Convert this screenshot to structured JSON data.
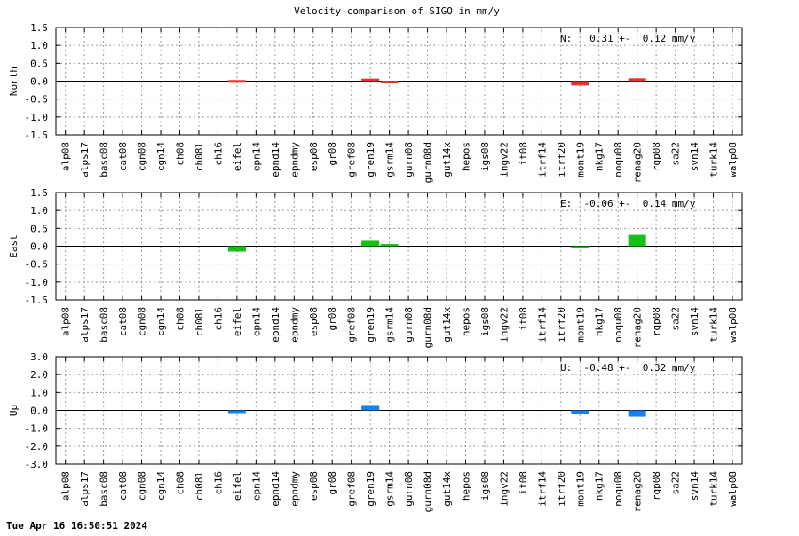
{
  "title": "Velocity comparison of SIGO in mm/y",
  "footer": {
    "timestamp": "Tue Apr 16 16:50:51 2024"
  },
  "chart_data": [
    {
      "type": "bar",
      "ylabel": "North",
      "annotation": "N:   0.31 +-  0.12 mm/y",
      "ylim": [
        -1.5,
        1.5
      ],
      "yticks": [
        "1.5",
        "1.0",
        "0.5",
        "0.0",
        "-0.5",
        "-1.0",
        "-1.5"
      ],
      "categories": [
        "alp08",
        "alps17",
        "basc08",
        "cat08",
        "cgn08",
        "cgn14",
        "ch08",
        "ch08l",
        "ch16",
        "eifel",
        "epn14",
        "epnd14",
        "epndmy",
        "esp08",
        "gr08",
        "gref08",
        "gren19",
        "gsrm14",
        "gurn08",
        "gurn08d",
        "gut14x",
        "hepos",
        "igs08",
        "ingv22",
        "it08",
        "itrf14",
        "itrf20",
        "mont19",
        "nkg17",
        "noqu08",
        "renag20",
        "rgp08",
        "sa22",
        "svn14",
        "turk14",
        "walp08"
      ],
      "values": [
        null,
        null,
        null,
        null,
        null,
        null,
        null,
        null,
        null,
        0.03,
        null,
        null,
        null,
        null,
        null,
        null,
        0.07,
        0.01,
        null,
        null,
        null,
        null,
        null,
        null,
        null,
        null,
        null,
        -0.12,
        null,
        null,
        0.08,
        null,
        null,
        null,
        null,
        null
      ],
      "grid": true,
      "color": "#e8342f"
    },
    {
      "type": "bar",
      "ylabel": "East",
      "annotation": "E:  -0.06 +-  0.14 mm/y",
      "ylim": [
        -1.5,
        1.5
      ],
      "yticks": [
        "1.5",
        "1.0",
        "0.5",
        "0.0",
        "-0.5",
        "-1.0",
        "-1.5"
      ],
      "categories": [
        "alp08",
        "alps17",
        "basc08",
        "cat08",
        "cgn08",
        "cgn14",
        "ch08",
        "ch08l",
        "ch16",
        "eifel",
        "epn14",
        "epnd14",
        "epndmy",
        "esp08",
        "gr08",
        "gref08",
        "gren19",
        "gsrm14",
        "gurn08",
        "gurn08d",
        "gut14x",
        "hepos",
        "igs08",
        "ingv22",
        "it08",
        "itrf14",
        "itrf20",
        "mont19",
        "nkg17",
        "noqu08",
        "renag20",
        "rgp08",
        "sa22",
        "svn14",
        "turk14",
        "walp08"
      ],
      "values": [
        null,
        null,
        null,
        null,
        null,
        null,
        null,
        null,
        null,
        -0.15,
        null,
        null,
        null,
        null,
        null,
        null,
        0.15,
        0.06,
        null,
        null,
        null,
        null,
        null,
        null,
        null,
        null,
        null,
        -0.06,
        null,
        null,
        0.32,
        null,
        null,
        null,
        null,
        null
      ],
      "grid": true,
      "color": "#17c017"
    },
    {
      "type": "bar",
      "ylabel": "Up",
      "annotation": "U:  -0.48 +-  0.32 mm/y",
      "ylim": [
        -3.0,
        3.0
      ],
      "yticks": [
        "3.0",
        "2.0",
        "1.0",
        "0.0",
        "-1.0",
        "-2.0",
        "-3.0"
      ],
      "categories": [
        "alp08",
        "alps17",
        "basc08",
        "cat08",
        "cgn08",
        "cgn14",
        "ch08",
        "ch08l",
        "ch16",
        "eifel",
        "epn14",
        "epnd14",
        "epndmy",
        "esp08",
        "gr08",
        "gref08",
        "gren19",
        "gsrm14",
        "gurn08",
        "gurn08d",
        "gut14x",
        "hepos",
        "igs08",
        "ingv22",
        "it08",
        "itrf14",
        "itrf20",
        "mont19",
        "nkg17",
        "noqu08",
        "renag20",
        "rgp08",
        "sa22",
        "svn14",
        "turk14",
        "walp08"
      ],
      "values": [
        null,
        null,
        null,
        null,
        null,
        null,
        null,
        null,
        null,
        -0.15,
        null,
        null,
        null,
        null,
        null,
        null,
        0.3,
        null,
        null,
        null,
        null,
        null,
        null,
        null,
        null,
        null,
        null,
        -0.2,
        null,
        null,
        -0.35,
        null,
        null,
        null,
        null,
        null
      ],
      "grid": true,
      "color": "#1a80f0"
    }
  ]
}
